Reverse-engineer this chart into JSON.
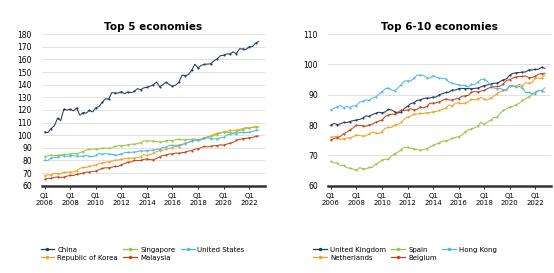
{
  "title_left": "Top 5 economies",
  "title_right": "Top 6-10 economies",
  "ylim_left": [
    60,
    180
  ],
  "ylim_right": [
    60,
    110
  ],
  "yticks_left": [
    60,
    70,
    80,
    90,
    100,
    110,
    120,
    130,
    140,
    150,
    160,
    170,
    180
  ],
  "yticks_right": [
    60,
    70,
    80,
    90,
    100,
    110
  ],
  "n_quarters": 68,
  "legend_left": [
    {
      "label": "China",
      "color": "#1f3864"
    },
    {
      "label": "Republic of Korea",
      "color": "#f4a020"
    },
    {
      "label": "Singapore",
      "color": "#92c83e"
    },
    {
      "label": "Malaysia",
      "color": "#c0461a"
    },
    {
      "label": "United States",
      "color": "#4db8e8"
    }
  ],
  "legend_right": [
    {
      "label": "United Kingdom",
      "color": "#1f3864"
    },
    {
      "label": "Netherlands",
      "color": "#f4a020"
    },
    {
      "label": "Spain",
      "color": "#92c83e"
    },
    {
      "label": "Belgium",
      "color": "#c0461a"
    },
    {
      "label": "Hong Kong",
      "color": "#4db8e8"
    }
  ]
}
